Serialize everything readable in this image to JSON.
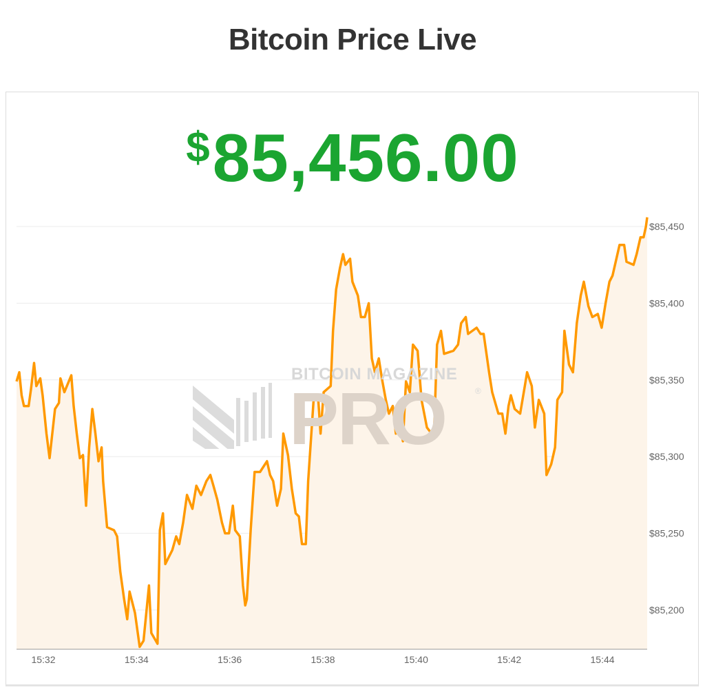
{
  "header": {
    "title": "Bitcoin Price Live"
  },
  "price": {
    "currency_symbol": "$",
    "value": "85,456.00",
    "color": "#1ba531"
  },
  "watermark": {
    "line1": "BITCOIN MAGAZINE",
    "line2": "PRO",
    "registered": "®"
  },
  "chart_data": {
    "type": "area",
    "title": "",
    "xlabel": "",
    "ylabel": "",
    "line_color": "#ff9900",
    "fill_color": "#fdf4e9",
    "grid": true,
    "ylim": [
      85174,
      85460
    ],
    "xlim": [
      "15:31:25",
      "15:44:58"
    ],
    "y_ticks": [
      "$85,200",
      "$85,250",
      "$85,300",
      "$85,350",
      "$85,400",
      "$85,450"
    ],
    "y_tick_values": [
      85200,
      85250,
      85300,
      85350,
      85400,
      85450
    ],
    "x_ticks": [
      "15:32",
      "15:34",
      "15:36",
      "15:38",
      "15:40",
      "15:42",
      "15:44"
    ],
    "y_axis_position": "right",
    "points": [
      [
        "15:31:25",
        85349
      ],
      [
        "15:31:29",
        85355
      ],
      [
        "15:31:32",
        85340
      ],
      [
        "15:31:35",
        85333
      ],
      [
        "15:31:41",
        85333
      ],
      [
        "15:31:44",
        85344
      ],
      [
        "15:31:48",
        85361
      ],
      [
        "15:31:51",
        85346
      ],
      [
        "15:31:56",
        85351
      ],
      [
        "15:31:59",
        85340
      ],
      [
        "15:32:04",
        85315
      ],
      [
        "15:32:08",
        85299
      ],
      [
        "15:32:15",
        85331
      ],
      [
        "15:32:20",
        85335
      ],
      [
        "15:32:22",
        85351
      ],
      [
        "15:32:27",
        85342
      ],
      [
        "15:32:36",
        85353
      ],
      [
        "15:32:39",
        85333
      ],
      [
        "15:32:43",
        85315
      ],
      [
        "15:32:47",
        85299
      ],
      [
        "15:32:51",
        85301
      ],
      [
        "15:32:55",
        85268
      ],
      [
        "15:32:59",
        85306
      ],
      [
        "15:33:03",
        85331
      ],
      [
        "15:33:07",
        85315
      ],
      [
        "15:33:11",
        85297
      ],
      [
        "15:33:15",
        85306
      ],
      [
        "15:33:17",
        85284
      ],
      [
        "15:33:22",
        85254
      ],
      [
        "15:33:31",
        85252
      ],
      [
        "15:33:35",
        85248
      ],
      [
        "15:33:39",
        85225
      ],
      [
        "15:33:44",
        85207
      ],
      [
        "15:33:48",
        85194
      ],
      [
        "15:33:51",
        85212
      ],
      [
        "15:33:58",
        85198
      ],
      [
        "15:34:04",
        85176
      ],
      [
        "15:34:09",
        85180
      ],
      [
        "15:34:16",
        85216
      ],
      [
        "15:34:19",
        85185
      ],
      [
        "15:34:27",
        85178
      ],
      [
        "15:34:30",
        85252
      ],
      [
        "15:34:34",
        85263
      ],
      [
        "15:34:37",
        85230
      ],
      [
        "15:34:46",
        85239
      ],
      [
        "15:34:51",
        85248
      ],
      [
        "15:34:55",
        85243
      ],
      [
        "15:35:00",
        85257
      ],
      [
        "15:35:05",
        85275
      ],
      [
        "15:35:12",
        85266
      ],
      [
        "15:35:17",
        85281
      ],
      [
        "15:35:23",
        85275
      ],
      [
        "15:35:30",
        85284
      ],
      [
        "15:35:35",
        85288
      ],
      [
        "15:35:39",
        85281
      ],
      [
        "15:35:44",
        85272
      ],
      [
        "15:35:50",
        85257
      ],
      [
        "15:35:54",
        85250
      ],
      [
        "15:35:59",
        85250
      ],
      [
        "15:36:04",
        85268
      ],
      [
        "15:36:07",
        85252
      ],
      [
        "15:36:13",
        85248
      ],
      [
        "15:36:17",
        85216
      ],
      [
        "15:36:20",
        85203
      ],
      [
        "15:36:22",
        85207
      ],
      [
        "15:36:27",
        85252
      ],
      [
        "15:36:32",
        85290
      ],
      [
        "15:36:39",
        85290
      ],
      [
        "15:36:48",
        85297
      ],
      [
        "15:36:52",
        85288
      ],
      [
        "15:36:56",
        85284
      ],
      [
        "15:37:01",
        85268
      ],
      [
        "15:37:06",
        85279
      ],
      [
        "15:37:09",
        85315
      ],
      [
        "15:37:15",
        85301
      ],
      [
        "15:37:20",
        85279
      ],
      [
        "15:37:25",
        85263
      ],
      [
        "15:37:29",
        85261
      ],
      [
        "15:37:33",
        85243
      ],
      [
        "15:37:38",
        85243
      ],
      [
        "15:37:41",
        85284
      ],
      [
        "15:37:48",
        85337
      ],
      [
        "15:37:54",
        85337
      ],
      [
        "15:37:57",
        85315
      ],
      [
        "15:38:01",
        85342
      ],
      [
        "15:38:10",
        85346
      ],
      [
        "15:38:13",
        85382
      ],
      [
        "15:38:17",
        85409
      ],
      [
        "15:38:22",
        85423
      ],
      [
        "15:38:26",
        85432
      ],
      [
        "15:38:29",
        85425
      ],
      [
        "15:38:35",
        85429
      ],
      [
        "15:38:38",
        85414
      ],
      [
        "15:38:45",
        85405
      ],
      [
        "15:38:49",
        85391
      ],
      [
        "15:38:54",
        85391
      ],
      [
        "15:38:59",
        85400
      ],
      [
        "15:39:03",
        85364
      ],
      [
        "15:39:07",
        85355
      ],
      [
        "15:39:12",
        85364
      ],
      [
        "15:39:16",
        85351
      ],
      [
        "15:39:21",
        85337
      ],
      [
        "15:39:25",
        85328
      ],
      [
        "15:39:30",
        85333
      ],
      [
        "15:39:34",
        85315
      ],
      [
        "15:39:38",
        85328
      ],
      [
        "15:39:43",
        85310
      ],
      [
        "15:39:47",
        85349
      ],
      [
        "15:39:52",
        85342
      ],
      [
        "15:39:56",
        85373
      ],
      [
        "15:40:02",
        85369
      ],
      [
        "15:40:07",
        85337
      ],
      [
        "15:40:14",
        85319
      ],
      [
        "15:40:23",
        85313
      ],
      [
        "15:40:27",
        85373
      ],
      [
        "15:40:32",
        85382
      ],
      [
        "15:40:36",
        85367
      ],
      [
        "15:40:48",
        85369
      ],
      [
        "15:40:54",
        85373
      ],
      [
        "15:40:58",
        85387
      ],
      [
        "15:41:04",
        85391
      ],
      [
        "15:41:07",
        85380
      ],
      [
        "15:41:18",
        85384
      ],
      [
        "15:41:23",
        85380
      ],
      [
        "15:41:27",
        85380
      ],
      [
        "15:41:34",
        85355
      ],
      [
        "15:41:38",
        85342
      ],
      [
        "15:41:46",
        85328
      ],
      [
        "15:41:51",
        85328
      ],
      [
        "15:41:55",
        85315
      ],
      [
        "15:41:59",
        85333
      ],
      [
        "15:42:02",
        85340
      ],
      [
        "15:42:07",
        85331
      ],
      [
        "15:42:14",
        85328
      ],
      [
        "15:42:20",
        85346
      ],
      [
        "15:42:23",
        85355
      ],
      [
        "15:42:29",
        85346
      ],
      [
        "15:42:33",
        85319
      ],
      [
        "15:42:38",
        85337
      ],
      [
        "15:42:45",
        85328
      ],
      [
        "15:42:48",
        85288
      ],
      [
        "15:42:54",
        85295
      ],
      [
        "15:42:59",
        85306
      ],
      [
        "15:43:02",
        85337
      ],
      [
        "15:43:08",
        85342
      ],
      [
        "15:43:11",
        85382
      ],
      [
        "15:43:17",
        85360
      ],
      [
        "15:43:22",
        85355
      ],
      [
        "15:43:27",
        85387
      ],
      [
        "15:43:32",
        85405
      ],
      [
        "15:43:36",
        85414
      ],
      [
        "15:43:42",
        85398
      ],
      [
        "15:43:47",
        85391
      ],
      [
        "15:43:54",
        85393
      ],
      [
        "15:43:59",
        85384
      ],
      [
        "15:44:04",
        85400
      ],
      [
        "15:44:09",
        85414
      ],
      [
        "15:44:13",
        85418
      ],
      [
        "15:44:18",
        85429
      ],
      [
        "15:44:22",
        85438
      ],
      [
        "15:44:28",
        85438
      ],
      [
        "15:44:31",
        85427
      ],
      [
        "15:44:40",
        85425
      ],
      [
        "15:44:44",
        85432
      ],
      [
        "15:44:49",
        85443
      ],
      [
        "15:44:53",
        85443
      ],
      [
        "15:44:56",
        85450
      ],
      [
        "15:44:58",
        85456
      ]
    ]
  }
}
